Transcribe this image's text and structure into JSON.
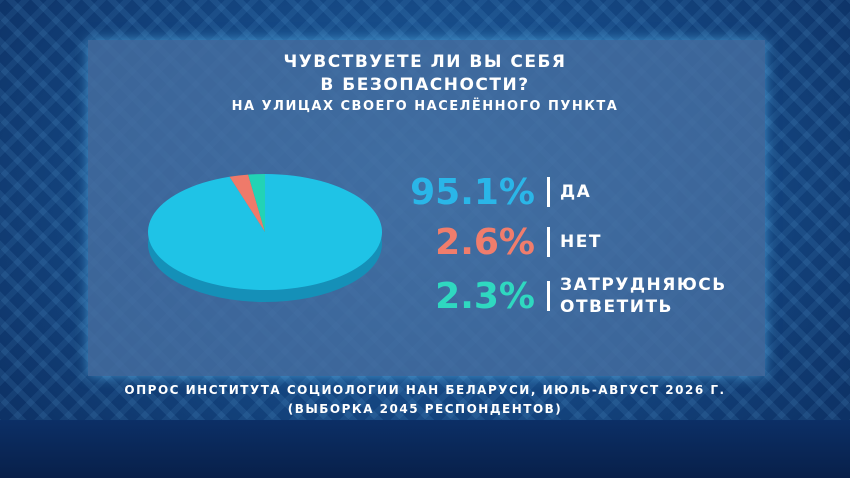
{
  "chart_data": {
    "type": "pie",
    "title": [
      "ЧУВСТВУЕТЕ ЛИ ВЫ СЕБЯ",
      "В БЕЗОПАСНОСТИ?"
    ],
    "subtitle": "НА УЛИЦАХ СВОЕГО НАСЕЛЁННОГО ПУНКТА",
    "categories": [
      "ДА",
      "НЕТ",
      "ЗАТРУДНЯЮСЬ ОТВЕТИТЬ"
    ],
    "values": [
      95.1,
      2.6,
      2.3
    ],
    "value_labels": [
      "95.1%",
      "2.6%",
      "2.3%"
    ],
    "colors": [
      "#1fc3e6",
      "#ef7a6a",
      "#22d3b5"
    ],
    "label_colors": [
      "#2ab6e8",
      "#f07d6c",
      "#2fd8c0"
    ],
    "source": [
      "ОПРОС ИНСТИТУТА СОЦИОЛОГИИ НАН БЕЛАРУСИ, ИЮЛЬ-АВГУСТ 2026 Г.",
      "(ВЫБОРКА 2045 РЕСПОНДЕНТОВ)"
    ]
  }
}
